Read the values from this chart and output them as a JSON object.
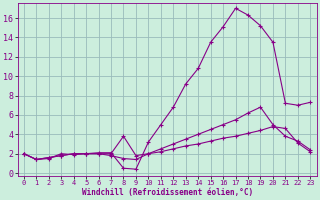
{
  "xlabel": "Windchill (Refroidissement éolien,°C)",
  "background_color": "#cceedd",
  "line_color": "#880088",
  "grid_color": "#99bbbb",
  "x_ticks": [
    0,
    1,
    2,
    3,
    4,
    5,
    6,
    7,
    8,
    9,
    10,
    11,
    12,
    13,
    14,
    15,
    16,
    17,
    18,
    19,
    20,
    21,
    22,
    23
  ],
  "y_ticks": [
    0,
    2,
    4,
    6,
    8,
    10,
    12,
    14,
    16
  ],
  "ylim": [
    -0.3,
    17.5
  ],
  "xlim": [
    -0.5,
    23.5
  ],
  "series1_x": [
    0,
    1,
    2,
    3,
    4,
    5,
    6,
    7,
    8,
    9,
    10,
    11,
    12,
    13,
    14,
    15,
    16,
    17,
    18,
    19,
    20,
    21,
    22,
    23
  ],
  "series1_y": [
    2.0,
    1.4,
    1.5,
    2.0,
    1.9,
    2.0,
    2.1,
    2.1,
    0.5,
    0.4,
    3.2,
    5.0,
    6.8,
    9.2,
    10.8,
    13.5,
    15.1,
    17.0,
    16.3,
    15.2,
    13.5,
    7.2,
    7.0,
    7.3
  ],
  "series2_x": [
    0,
    1,
    2,
    3,
    4,
    5,
    6,
    7,
    8,
    9,
    10,
    11,
    12,
    13,
    14,
    15,
    16,
    17,
    18,
    19,
    20,
    21,
    22,
    23
  ],
  "series2_y": [
    2.0,
    1.4,
    1.6,
    1.8,
    2.0,
    2.0,
    2.0,
    1.8,
    1.5,
    1.4,
    2.0,
    2.5,
    3.0,
    3.5,
    4.0,
    4.5,
    5.0,
    5.5,
    6.2,
    6.8,
    5.0,
    3.8,
    3.3,
    2.4
  ],
  "series3_x": [
    0,
    1,
    2,
    3,
    4,
    5,
    6,
    7,
    8,
    9,
    10,
    11,
    12,
    13,
    14,
    15,
    16,
    17,
    18,
    19,
    20,
    21,
    22,
    23
  ],
  "series3_y": [
    2.0,
    1.4,
    1.6,
    1.8,
    2.0,
    2.0,
    2.0,
    2.0,
    3.8,
    1.8,
    2.0,
    2.2,
    2.5,
    2.8,
    3.0,
    3.3,
    3.6,
    3.8,
    4.1,
    4.4,
    4.8,
    4.6,
    3.1,
    2.2
  ]
}
